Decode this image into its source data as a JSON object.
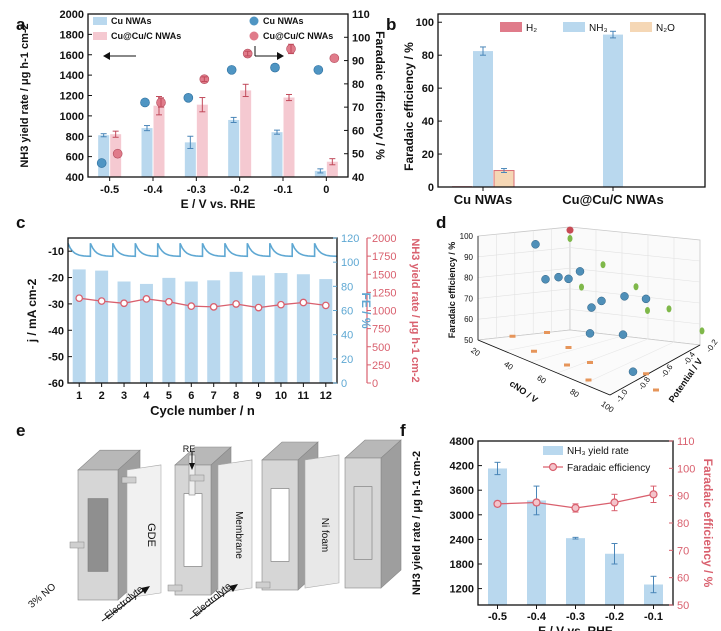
{
  "colors": {
    "blue_bar": "#b9d8ee",
    "pink_bar": "#f5c9d1",
    "red": "#d9606e",
    "blue": "#5a9cc8",
    "blue_axis": "#5fa8d3",
    "orange": "#f5d7b5",
    "dark": "#111111",
    "gray": "#d9d9d9"
  },
  "panel_labels": {
    "a": "a",
    "b": "b",
    "c": "c",
    "d": "d",
    "e": "e",
    "f": "f"
  },
  "chart_data": [
    {
      "id": "a",
      "type": "bar",
      "categories": [
        "-0.5",
        "-0.4",
        "-0.3",
        "-0.2",
        "-0.1",
        "0"
      ],
      "series": [
        {
          "name": "Cu NWAs",
          "kind": "bar",
          "axis": "left",
          "values": [
            810,
            880,
            740,
            960,
            840,
            460
          ],
          "errors": [
            15,
            25,
            60,
            25,
            20,
            20
          ]
        },
        {
          "name": "Cu@Cu/C NWAs",
          "kind": "bar",
          "axis": "left",
          "values": [
            820,
            1100,
            1110,
            1250,
            1180,
            550
          ],
          "errors": [
            30,
            90,
            70,
            60,
            30,
            30
          ]
        },
        {
          "name": "Cu NWAs",
          "kind": "scatter",
          "axis": "right",
          "values": [
            46,
            72,
            74,
            86,
            87,
            86
          ],
          "errors": [
            0,
            2,
            0,
            3,
            0,
            0
          ]
        },
        {
          "name": "Cu@Cu/C NWAs",
          "kind": "scatter",
          "axis": "right",
          "values": [
            50,
            72,
            82,
            93,
            95,
            91
          ],
          "errors": [
            0,
            2,
            1,
            1,
            2,
            0
          ]
        }
      ],
      "xlabel": "E / V vs. RHE",
      "ylabel_left": "NH3 yield rate / μg h-1 cm-2",
      "ylabel_right": "Faradaic efficiency / %",
      "ylim_left": [
        400,
        2000
      ],
      "ylim_right": [
        40,
        110
      ],
      "yticks_left": [
        "400",
        "600",
        "800",
        "1000",
        "1200",
        "1400",
        "1600",
        "1800",
        "2000"
      ],
      "yticks_right": [
        "40",
        "50",
        "60",
        "70",
        "80",
        "90",
        "100",
        "110"
      ],
      "legend_bar": [
        "Cu NWAs",
        "Cu@Cu/C NWAs"
      ],
      "legend_dot": [
        "Cu NWAs",
        "Cu@Cu/C NWAs"
      ]
    },
    {
      "id": "b",
      "type": "bar",
      "categories": [
        "Cu NWAs",
        "Cu@Cu/C NWAs"
      ],
      "series": [
        {
          "name": "H2",
          "values": [
            0.5,
            0
          ],
          "errors": [
            0,
            0
          ]
        },
        {
          "name": "NH3",
          "values": [
            82.5,
            92.5
          ],
          "errors": [
            2.5,
            2
          ]
        },
        {
          "name": "N2O",
          "values": [
            10,
            0
          ],
          "errors": [
            1.2,
            0
          ]
        }
      ],
      "legend": [
        "H₂",
        "NH₃",
        "N₂O"
      ],
      "ylabel": "Faradaic efficiency / %",
      "ylim": [
        0,
        105
      ],
      "yticks": [
        "0",
        "20",
        "40",
        "60",
        "80",
        "100"
      ]
    },
    {
      "id": "c",
      "type": "bar",
      "categories": [
        "1",
        "2",
        "3",
        "4",
        "5",
        "6",
        "7",
        "8",
        "9",
        "10",
        "11",
        "12"
      ],
      "series": [
        {
          "name": "FE",
          "kind": "bar",
          "axis": "right_fe",
          "values": [
            94,
            93,
            84,
            82,
            87,
            84,
            85,
            92,
            89,
            91,
            90,
            86
          ]
        },
        {
          "name": "NH3 yield rate",
          "kind": "line",
          "axis": "right_yield",
          "values": [
            1170,
            1130,
            1100,
            1160,
            1120,
            1060,
            1050,
            1090,
            1040,
            1080,
            1110,
            1070
          ]
        }
      ],
      "current_trace": {
        "name": "j",
        "axis": "left",
        "range": [
          -7,
          -12
        ]
      },
      "xlabel": "Cycle number / n",
      "ylabel_left": "j / mA cm-2",
      "ylabel_fe": "FE / %",
      "ylabel_yield": "NH3 yield rate / μg h-1 cm-2",
      "ylim_left": [
        -60,
        -5
      ],
      "ylim_fe": [
        0,
        120
      ],
      "ylim_yield": [
        0,
        2000
      ],
      "yticks_left": [
        "-60",
        "-50",
        "-40",
        "-30",
        "-20",
        "-10"
      ],
      "yticks_fe": [
        "0",
        "20",
        "40",
        "60",
        "80",
        "100",
        "120"
      ],
      "yticks_yield": [
        "0",
        "250",
        "500",
        "750",
        "1000",
        "1250",
        "1500",
        "1750",
        "2000"
      ]
    },
    {
      "id": "d",
      "type": "scatter",
      "xlabel": "cNO / V",
      "ylabel": "Faradaic efficiency / %",
      "zlabel": "Potential / V",
      "xticks": [
        "20",
        "40",
        "60",
        "80",
        "100"
      ],
      "yticks": [
        "50",
        "60",
        "70",
        "80",
        "90",
        "100"
      ],
      "zticks": [
        "-1.0",
        "-0.8",
        "-0.6",
        "-0.4",
        "-0.2"
      ],
      "blue_points": [
        [
          20,
          -0.5,
          93
        ],
        [
          40,
          -0.4,
          86
        ],
        [
          40,
          -0.5,
          83
        ],
        [
          60,
          -0.3,
          80
        ],
        [
          20,
          -0.3,
          76
        ],
        [
          80,
          -0.6,
          70
        ],
        [
          60,
          -0.6,
          64
        ],
        [
          40,
          -0.3,
          68
        ],
        [
          100,
          -0.8,
          60
        ],
        [
          80,
          -0.4,
          86
        ],
        [
          40,
          -0.7,
          84
        ],
        [
          60,
          -0.5,
          79
        ]
      ],
      "green_points": [
        [
          20,
          -0.2,
          94
        ],
        [
          40,
          -0.2,
          88
        ],
        [
          60,
          -0.2,
          84
        ],
        [
          80,
          -0.2,
          80
        ],
        [
          100,
          -0.2,
          76
        ],
        [
          20,
          -0.1,
          70
        ],
        [
          60,
          -0.1,
          72
        ]
      ],
      "red_points": [
        [
          20,
          -0.2,
          98
        ]
      ],
      "orange_points": [
        [
          20,
          -0.4,
          50
        ],
        [
          40,
          -0.5,
          50
        ],
        [
          60,
          -0.6,
          50
        ],
        [
          80,
          -0.4,
          50
        ],
        [
          100,
          -0.6,
          50
        ],
        [
          60,
          -0.8,
          50
        ],
        [
          80,
          -0.9,
          50
        ],
        [
          40,
          -0.8,
          50
        ],
        [
          20,
          -0.7,
          50
        ]
      ]
    },
    {
      "id": "f",
      "type": "bar",
      "categories": [
        "-0.5",
        "-0.4",
        "-0.3",
        "-0.2",
        "-0.1"
      ],
      "series": [
        {
          "name": "NH3 yield rate",
          "kind": "bar",
          "axis": "left",
          "values": [
            4130,
            3350,
            2430,
            2050,
            1300
          ],
          "errors": [
            150,
            350,
            20,
            250,
            200
          ]
        },
        {
          "name": "Faradaic efficiency",
          "kind": "line",
          "axis": "right",
          "values": [
            87,
            87.5,
            85.5,
            87.5,
            90.5
          ],
          "errors": [
            1,
            1,
            1.5,
            3,
            3
          ]
        }
      ],
      "xlabel": "E / V vs. RHE",
      "ylabel_left": "NH3 yield rate / μg h-1 cm-2",
      "ylabel_right": "Faradaic efficiency / %",
      "ylim_left": [
        800,
        4800
      ],
      "ylim_right": [
        50,
        110
      ],
      "yticks_left": [
        "1200",
        "1800",
        "2400",
        "3000",
        "3600",
        "4200",
        "4800"
      ],
      "yticks_right": [
        "50",
        "60",
        "70",
        "80",
        "90",
        "100",
        "110"
      ],
      "legend": [
        "NH₃ yield rate",
        "Faradaic efficiency"
      ]
    }
  ],
  "schematic": {
    "labels": {
      "re": "RE",
      "gde": "GDE",
      "membrane": "Membrane",
      "nifoam": "Ni foam",
      "no_in": "3% NO",
      "electrolyte1": "Electrolyte",
      "electrolyte2": "Electrolyte"
    }
  }
}
